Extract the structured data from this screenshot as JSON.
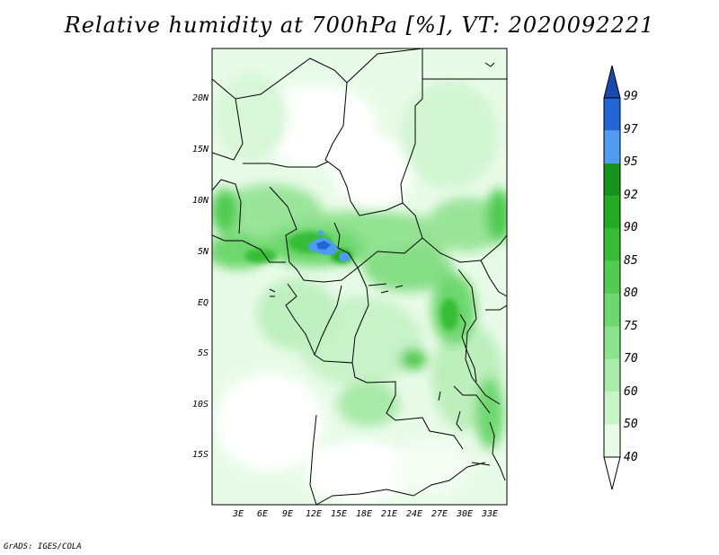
{
  "title": "Relative humidity at 700hPa [%], VT: 2020092221",
  "credit": "GrADS: IGES/COLA",
  "map": {
    "latitude_labels": [
      "20N",
      "15N",
      "10N",
      "5N",
      "EQ",
      "5S",
      "10S",
      "15S"
    ],
    "longitude_labels": [
      "3E",
      "6E",
      "9E",
      "12E",
      "15E",
      "18E",
      "21E",
      "24E",
      "27E",
      "30E",
      "33E"
    ]
  },
  "colorbar": {
    "levels": [
      "40",
      "50",
      "60",
      "70",
      "75",
      "80",
      "85",
      "90",
      "92",
      "95",
      "97",
      "99"
    ],
    "colors": [
      "#ffffff",
      "#e6fce6",
      "#c8f5c8",
      "#a8eca8",
      "#8ce38c",
      "#6ed86e",
      "#50cc50",
      "#36bd36",
      "#22ac22",
      "#14961a",
      "#4f9cf0",
      "#2466d8",
      "#1848b0"
    ]
  }
}
